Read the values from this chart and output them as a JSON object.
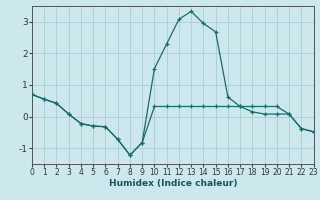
{
  "xlabel": "Humidex (Indice chaleur)",
  "xlim": [
    0,
    23
  ],
  "ylim": [
    -1.5,
    3.5
  ],
  "yticks": [
    -1,
    0,
    1,
    2,
    3
  ],
  "xticks": [
    0,
    1,
    2,
    3,
    4,
    5,
    6,
    7,
    8,
    9,
    10,
    11,
    12,
    13,
    14,
    15,
    16,
    17,
    18,
    19,
    20,
    21,
    22,
    23
  ],
  "background_color": "#cce8ec",
  "grid_color": "#b0d0d5",
  "line_color": "#1a6b6b",
  "series1_x": [
    0,
    1,
    2,
    3,
    4,
    5,
    6,
    7,
    8,
    9,
    10,
    11,
    12,
    13,
    14,
    15,
    16,
    17,
    18,
    19,
    20,
    21,
    22,
    23
  ],
  "series1_y": [
    0.7,
    0.55,
    0.42,
    0.08,
    -0.22,
    -0.3,
    -0.32,
    -0.72,
    -1.22,
    -0.82,
    0.32,
    0.32,
    0.32,
    0.32,
    0.32,
    0.32,
    0.32,
    0.32,
    0.32,
    0.32,
    0.32,
    0.08,
    -0.38,
    -0.48
  ],
  "series2_x": [
    0,
    1,
    2,
    3,
    4,
    5,
    6,
    7,
    8,
    9,
    10,
    11,
    12,
    13,
    14,
    15,
    16,
    17,
    18,
    19,
    20,
    21,
    22,
    23
  ],
  "series2_y": [
    0.7,
    0.55,
    0.42,
    0.08,
    -0.22,
    -0.3,
    -0.32,
    -0.72,
    -1.22,
    -0.82,
    1.52,
    2.3,
    3.08,
    3.33,
    2.95,
    2.68,
    0.62,
    0.32,
    0.15,
    0.08,
    0.08,
    0.08,
    -0.38,
    -0.48
  ]
}
